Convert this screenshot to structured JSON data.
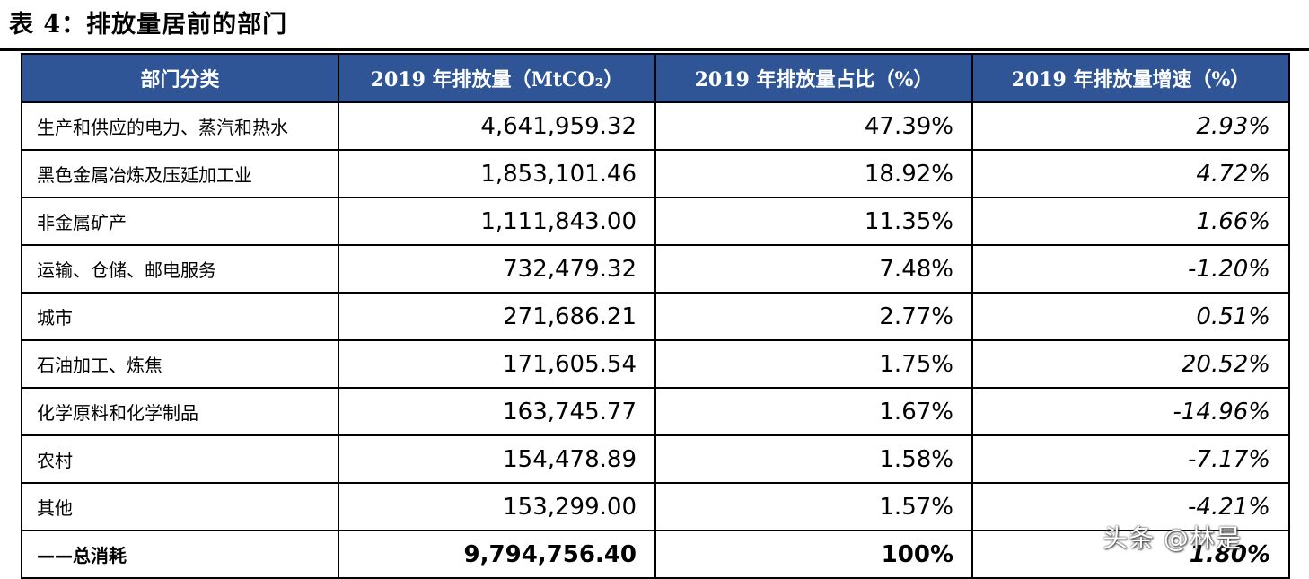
{
  "caption": "表 4：排放量居前的部门",
  "table": {
    "headers": [
      "部门分类",
      "2019 年排放量（MtCO₂）",
      "2019 年排放量占比（%）",
      "2019 年排放量增速（%）"
    ],
    "rows": [
      {
        "sector": "生产和供应的电力、蒸汽和热水",
        "emissions": "4,641,959.32",
        "share": "47.39%",
        "growth": "2.93%"
      },
      {
        "sector": "黑色金属冶炼及压延加工业",
        "emissions": "1,853,101.46",
        "share": "18.92%",
        "growth": "4.72%"
      },
      {
        "sector": "非金属矿产",
        "emissions": "1,111,843.00",
        "share": "11.35%",
        "growth": "1.66%"
      },
      {
        "sector": "运输、仓储、邮电服务",
        "emissions": "732,479.32",
        "share": "7.48%",
        "growth": "-1.20%"
      },
      {
        "sector": "城市",
        "emissions": "271,686.21",
        "share": "2.77%",
        "growth": "0.51%"
      },
      {
        "sector": "石油加工、炼焦",
        "emissions": "171,605.54",
        "share": "1.75%",
        "growth": "20.52%"
      },
      {
        "sector": "化学原料和化学制品",
        "emissions": "163,745.77",
        "share": "1.67%",
        "growth": "-14.96%"
      },
      {
        "sector": "农村",
        "emissions": "154,478.89",
        "share": "1.58%",
        "growth": "-7.17%"
      },
      {
        "sector": "其他",
        "emissions": "153,299.00",
        "share": "1.57%",
        "growth": "-4.21%"
      }
    ],
    "total": {
      "sector": "——总消耗",
      "emissions": "9,794,756.40",
      "share": "100%",
      "growth": "1.80%"
    }
  },
  "watermark": "头条 @林是",
  "colors": {
    "header_bg": "#2f5597",
    "header_text": "#ffffff"
  }
}
